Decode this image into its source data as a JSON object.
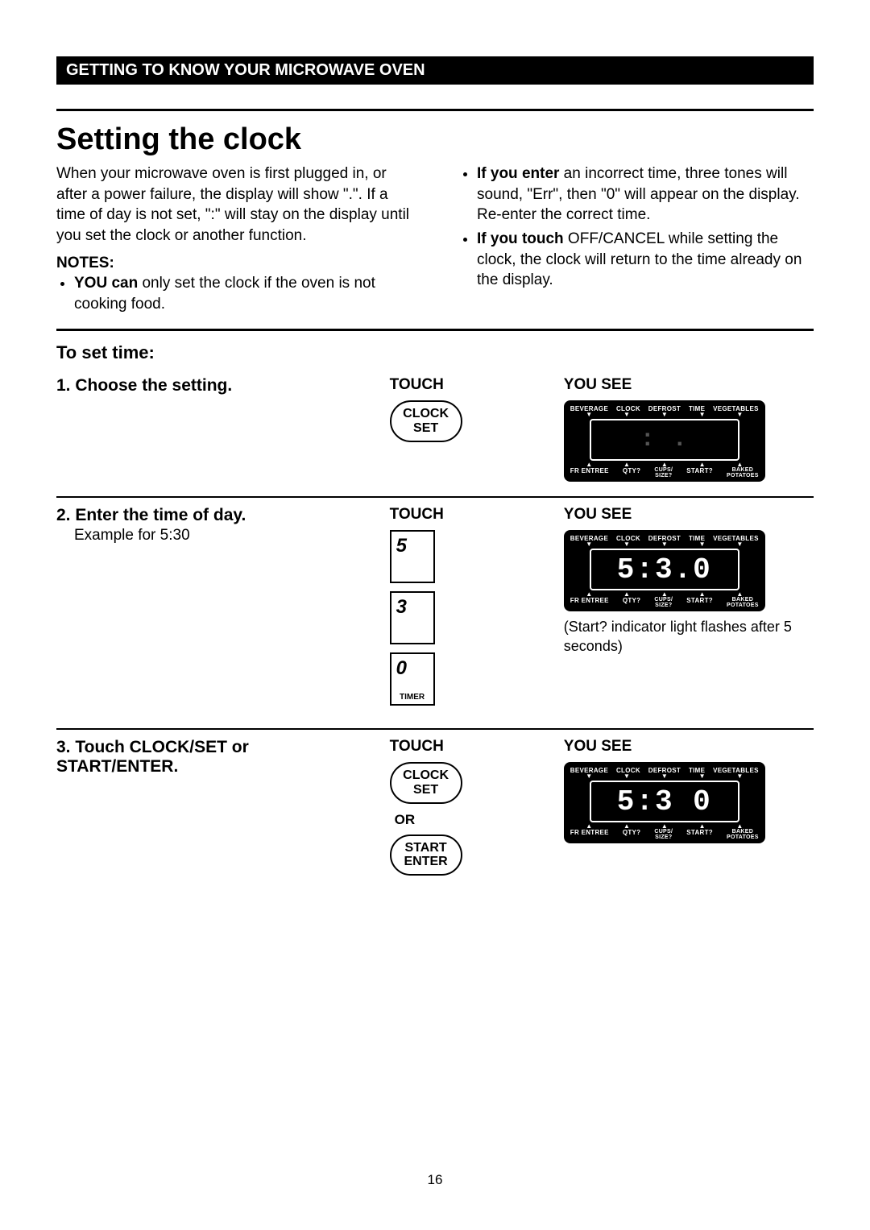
{
  "section_header": "GETTING TO KNOW YOUR MICROWAVE OVEN",
  "title": "Setting the clock",
  "intro_left": "When your microwave oven is first plugged in, or after a power failure, the display will show \".\". If a time of day is not set, \":\" will stay on the display until you set the clock or another function.",
  "notes_label": "NOTES:",
  "notes_left": [
    {
      "bold": "YOU can",
      "rest": " only set the clock if the oven is not cooking food."
    }
  ],
  "notes_right": [
    {
      "bold": "If you enter",
      "rest": " an incorrect time, three tones will sound, \"Err\", then \"0\" will appear on the display. Re-enter the correct time."
    },
    {
      "bold": "If you touch",
      "rest": " OFF/CANCEL while setting the clock, the clock will return to the time already on the display."
    }
  ],
  "subhead": "To set time:",
  "col_touch": "TOUCH",
  "col_yousee": "YOU SEE",
  "or_label": "OR",
  "steps": {
    "s1": {
      "title": "1. Choose the setting."
    },
    "s2": {
      "title": "2. Enter the time of day.",
      "sub": "Example for 5:30",
      "caption": "(Start? indicator light flashes after 5 seconds)"
    },
    "s3": {
      "title": "3. Touch CLOCK/SET or START/ENTER."
    }
  },
  "buttons": {
    "clockset1": "CLOCK",
    "clockset2": "SET",
    "start1": "START",
    "start2": "ENTER",
    "k5": "5",
    "k3": "3",
    "k0": "0",
    "timer": "TIMER"
  },
  "display_labels": {
    "top": [
      "BEVERAGE",
      "CLOCK",
      "DEFROST",
      "TIME",
      "VEGETABLES"
    ],
    "bot_l": "FR ENTREE",
    "bot_qty": "QTY?",
    "bot_cups1": "CUPS/",
    "bot_cups2": "SIZE?",
    "bot_start": "START?",
    "bot_baked1": "BAKED",
    "bot_baked2": "POTATOES"
  },
  "display_values": {
    "d1": ": .",
    "d2": "5:3.0",
    "d3": "5:3 0"
  },
  "page_number": "16"
}
